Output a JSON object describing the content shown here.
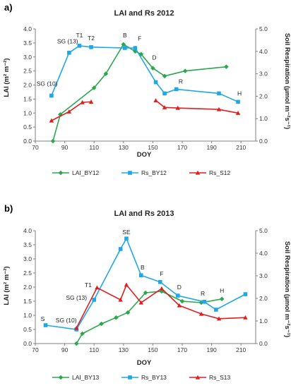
{
  "chart_data": [
    {
      "type": "line",
      "panel_label": "a)",
      "title": "LAI and Rs 2012",
      "xlabel": "DOY",
      "ylabel_left": "LAI (m² m⁻²)",
      "ylabel_right": "Soil Respiration (µmol m⁻²s⁻¹)",
      "xlim": [
        70,
        220
      ],
      "xticks": [
        70,
        90,
        110,
        130,
        150,
        170,
        190,
        210
      ],
      "ylim_left": [
        0,
        4.0
      ],
      "yticks_left": [
        "0.0",
        "0.5",
        "1.0",
        "1.5",
        "2.0",
        "2.5",
        "3.0",
        "3.5",
        "4.0"
      ],
      "ylim_right": [
        0,
        5.0
      ],
      "yticks_right": [
        "0.0",
        "1.0",
        "2.0",
        "3.0",
        "4.0",
        "5.0"
      ],
      "series": [
        {
          "name": "LAI_BY12",
          "axis": "left",
          "color": "#2aa84a",
          "marker": "diamond",
          "segments": [
            [
              [
                82,
                0.0
              ],
              [
                87,
                0.95
              ],
              [
                110,
                1.9
              ],
              [
                118,
                2.4
              ],
              [
                130,
                3.45
              ],
              [
                138,
                3.2
              ],
              [
                142,
                3.1
              ],
              [
                150,
                2.6
              ],
              [
                158,
                2.32
              ],
              [
                172,
                2.5
              ],
              [
                200,
                2.65
              ]
            ]
          ]
        },
        {
          "name": "Rs_BY12",
          "axis": "left",
          "color": "#1ea8e8",
          "marker": "square",
          "segments": [
            [
              [
                81,
                1.62
              ],
              [
                93,
                3.15
              ],
              [
                100,
                3.4
              ],
              [
                108,
                3.35
              ],
              [
                131,
                3.32
              ],
              [
                138,
                3.32
              ],
              [
                152,
                2.1
              ],
              [
                158,
                1.7
              ],
              [
                166,
                1.85
              ],
              [
                195,
                1.7
              ],
              [
                208,
                1.4
              ]
            ]
          ]
        },
        {
          "name": "Rs_S12",
          "axis": "left",
          "color": "#e01e1e",
          "marker": "triangle",
          "segments": [
            [
              [
                81,
                0.73
              ],
              [
                93,
                1.05
              ],
              [
                102,
                1.38
              ],
              [
                108,
                1.4
              ]
            ],
            [
              [
                152,
                1.45
              ],
              [
                158,
                1.2
              ],
              [
                167,
                1.18
              ],
              [
                195,
                1.13
              ],
              [
                208,
                1.0
              ]
            ]
          ]
        }
      ],
      "annotations": [
        {
          "text": "SG (10)",
          "x": 78,
          "y": 1.98
        },
        {
          "text": "SG (13)",
          "x": 92,
          "y": 3.48
        },
        {
          "text": "T1",
          "x": 100,
          "y": 3.7
        },
        {
          "text": "T2",
          "x": 108,
          "y": 3.6
        },
        {
          "text": "B",
          "x": 131,
          "y": 3.7
        },
        {
          "text": "F",
          "x": 141,
          "y": 3.58
        },
        {
          "text": "D",
          "x": 151,
          "y": 2.9
        },
        {
          "text": "R",
          "x": 169,
          "y": 2.05
        },
        {
          "text": "H",
          "x": 209,
          "y": 1.62
        }
      ]
    },
    {
      "type": "line",
      "panel_label": "b)",
      "title": "LAI and Rs 2013",
      "xlabel": "DOY",
      "ylabel_left": "LAI (m² m⁻²)",
      "ylabel_right": "Soil Respiration (µmol m⁻²s⁻¹)",
      "xlim": [
        70,
        220
      ],
      "xticks": [
        70,
        90,
        110,
        130,
        150,
        170,
        190,
        210
      ],
      "ylim_left": [
        0,
        4.0
      ],
      "yticks_left": [
        "0.0",
        "0.5",
        "1.0",
        "1.5",
        "2.0",
        "2.5",
        "3.0",
        "3.5",
        "4.0"
      ],
      "ylim_right": [
        0,
        5.0
      ],
      "yticks_right": [
        "0.0",
        "1.0",
        "2.0",
        "3.0",
        "4.0",
        "5.0"
      ],
      "series": [
        {
          "name": "LAI_BY13",
          "axis": "left",
          "color": "#2aa84a",
          "marker": "diamond",
          "segments": [
            [
              [
                98,
                0.0
              ],
              [
                102,
                0.35
              ],
              [
                115,
                0.7
              ],
              [
                125,
                0.92
              ],
              [
                133,
                1.1
              ],
              [
                145,
                1.8
              ],
              [
                156,
                1.85
              ],
              [
                170,
                1.5
              ],
              [
                183,
                1.45
              ],
              [
                197,
                1.58
              ]
            ]
          ]
        },
        {
          "name": "Rs_BY13",
          "axis": "left",
          "color": "#1ea8e8",
          "marker": "square",
          "segments": [
            [
              [
                77,
                0.65
              ],
              [
                98,
                0.5
              ],
              [
                110,
                1.55
              ],
              [
                128,
                3.35
              ],
              [
                132,
                3.72
              ],
              [
                142,
                2.42
              ],
              [
                155,
                2.18
              ],
              [
                167,
                1.7
              ],
              [
                185,
                1.48
              ],
              [
                193,
                1.2
              ],
              [
                213,
                1.75
              ]
            ]
          ]
        },
        {
          "name": "Rs_S13",
          "axis": "left",
          "color": "#e01e1e",
          "marker": "triangle",
          "segments": [
            [
              [
                98,
                0.55
              ],
              [
                112,
                1.98
              ],
              [
                128,
                1.55
              ],
              [
                132,
                2.08
              ],
              [
                142,
                1.45
              ],
              [
                156,
                1.95
              ],
              [
                168,
                1.35
              ],
              [
                183,
                1.05
              ],
              [
                195,
                0.88
              ],
              [
                213,
                0.92
              ]
            ]
          ]
        }
      ],
      "annotations": [
        {
          "text": "S",
          "x": 75,
          "y": 0.8
        },
        {
          "text": "SG (10)",
          "x": 91,
          "y": 0.75
        },
        {
          "text": "SG (13)",
          "x": 98,
          "y": 1.55
        },
        {
          "text": "T1",
          "x": 106,
          "y": 2.0
        },
        {
          "text": "SE",
          "x": 132,
          "y": 3.88
        },
        {
          "text": "B",
          "x": 143,
          "y": 2.62
        },
        {
          "text": "F",
          "x": 156,
          "y": 2.4
        },
        {
          "text": "D",
          "x": 168,
          "y": 1.92
        },
        {
          "text": "R",
          "x": 184,
          "y": 1.7
        },
        {
          "text": "H",
          "x": 197,
          "y": 1.8
        }
      ]
    }
  ]
}
